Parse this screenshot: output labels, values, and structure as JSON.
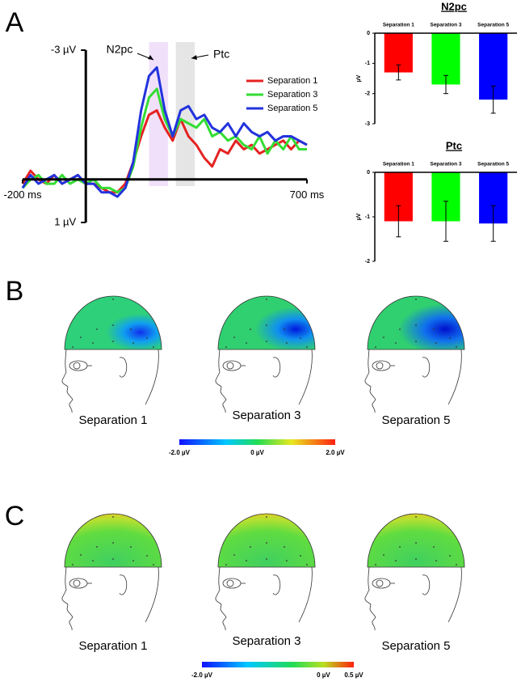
{
  "panel_labels": [
    "A",
    "B",
    "C"
  ],
  "chart_data": [
    {
      "type": "line",
      "x": [
        -200,
        -175,
        -150,
        -125,
        -100,
        -75,
        -50,
        -25,
        0,
        25,
        50,
        75,
        100,
        125,
        150,
        175,
        200,
        225,
        250,
        275,
        300,
        325,
        350,
        375,
        400,
        425,
        450,
        475,
        500,
        525,
        550,
        575,
        600,
        625,
        650,
        675,
        700
      ],
      "series": [
        {
          "name": "Separation 1",
          "color": "#e52222",
          "values": [
            0.1,
            -0.2,
            0,
            0.1,
            -0.1,
            0.1,
            0,
            -0.1,
            0.1,
            0.1,
            0.2,
            0.3,
            0.3,
            0.1,
            -0.4,
            -1.0,
            -1.5,
            -1.6,
            -1.2,
            -0.9,
            -1.4,
            -1.0,
            -0.8,
            -0.5,
            -0.3,
            -0.7,
            -0.6,
            -0.9,
            -0.7,
            -0.8,
            -0.6,
            -0.7,
            -0.8,
            -0.9,
            -0.7,
            -0.9,
            -0.8
          ]
        },
        {
          "name": "Separation 3",
          "color": "#33dd33",
          "values": [
            0.2,
            0,
            -0.1,
            0.1,
            0.1,
            -0.1,
            0.1,
            0,
            0.1,
            0,
            0.2,
            0.2,
            0.3,
            0.2,
            -0.3,
            -1.2,
            -1.9,
            -2.1,
            -1.4,
            -1.0,
            -1.4,
            -1.3,
            -1.2,
            -1.4,
            -1.0,
            -1.1,
            -0.9,
            -1.0,
            -0.8,
            -0.7,
            -1.0,
            -0.6,
            -0.9,
            -0.7,
            -1.0,
            -0.7,
            -0.7
          ]
        },
        {
          "name": "Separation 5",
          "color": "#2233dd",
          "values": [
            0.2,
            -0.1,
            0.1,
            0,
            -0.1,
            0.1,
            0,
            -0.1,
            0.1,
            0.1,
            0.3,
            0.3,
            0.4,
            0.2,
            -0.4,
            -1.6,
            -2.4,
            -2.6,
            -1.6,
            -1.0,
            -1.6,
            -1.7,
            -1.4,
            -1.5,
            -1.2,
            -1.1,
            -1.3,
            -1.0,
            -1.3,
            -1.1,
            -1.0,
            -1.1,
            -0.9,
            -1.0,
            -1.0,
            -0.9,
            -0.8
          ]
        }
      ],
      "xlim": [
        -200,
        700
      ],
      "xticks": [
        {
          "value": -200,
          "label": "-200 ms"
        },
        {
          "value": 700,
          "label": "700 ms"
        }
      ],
      "ylim": [
        1,
        -3
      ],
      "yticks": [
        {
          "value": -3,
          "label": "-3 µV"
        },
        {
          "value": 1,
          "label": "1 µV"
        }
      ],
      "windows": [
        {
          "label": "N2pc",
          "range": [
            200,
            260
          ],
          "color": "#cc99ee"
        },
        {
          "label": "Ptc",
          "range": [
            285,
            345
          ],
          "color": "#aaaaaa"
        }
      ]
    },
    {
      "type": "bar",
      "title": "N2pc",
      "y_label": "µV",
      "categories": [
        "Separation 1",
        "Separation 3",
        "Separation 5"
      ],
      "values": [
        -1.3,
        -1.7,
        -2.2
      ],
      "errors": [
        0.25,
        0.3,
        0.45
      ],
      "colors": [
        "#ff0000",
        "#00ff00",
        "#0000ff"
      ],
      "ylim": [
        0,
        -3
      ],
      "yticks": [
        0,
        -1,
        -2,
        -3
      ]
    },
    {
      "type": "bar",
      "title": "Ptc",
      "y_label": "µV",
      "categories": [
        "Separation 1",
        "Separation 3",
        "Separation 5"
      ],
      "values": [
        -1.1,
        -1.1,
        -1.15
      ],
      "errors": [
        0.35,
        0.45,
        0.4
      ],
      "colors": [
        "#ff0000",
        "#00ff00",
        "#0000ff"
      ],
      "ylim": [
        0,
        -2
      ],
      "yticks": [
        0,
        -1,
        -2
      ]
    }
  ],
  "topomaps_b": {
    "conditions": [
      "Separation 1",
      "Separation 3",
      "Separation 5"
    ],
    "colorbar": {
      "range": [
        -2,
        2
      ],
      "ticks": [
        {
          "value": -2,
          "label": "-2.0 µV"
        },
        {
          "value": 0,
          "label": "0 µV"
        },
        {
          "value": 2,
          "label": "2.0 µV"
        }
      ]
    }
  },
  "topomaps_c": {
    "conditions": [
      "Separation 1",
      "Separation 3",
      "Separation 5"
    ],
    "colorbar": {
      "range": [
        -2,
        0.5
      ],
      "ticks": [
        {
          "value": -2,
          "label": "-2.0 µV"
        },
        {
          "value": 0,
          "label": "0 µV"
        },
        {
          "value": 0.5,
          "label": "0.5 µV"
        }
      ]
    }
  }
}
